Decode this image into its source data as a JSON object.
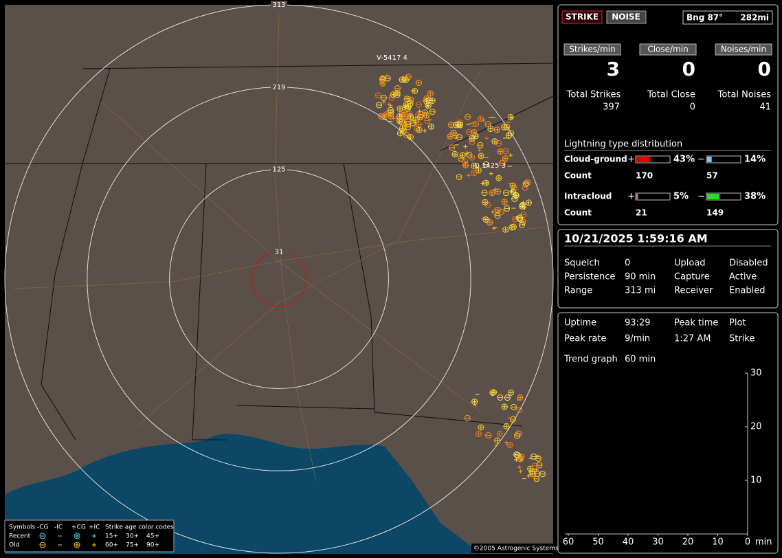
{
  "map": {
    "range_rings": [
      313,
      219,
      125,
      31
    ],
    "strike_tags": [
      "V-5417  4",
      "Q 1425  3"
    ],
    "legend": {
      "row_titles": [
        "Symbols",
        "Recent",
        "Old"
      ],
      "symbol_heads": [
        "-CG",
        "-IC",
        "+CG",
        "+IC"
      ],
      "age_title": "Strike age color codes",
      "recent_ages": [
        "15+",
        "30+",
        "45+"
      ],
      "old_ages": [
        "60+",
        "75+",
        "90+"
      ]
    },
    "copyright": "©2005 Astrogenic Systems"
  },
  "header": {
    "strike_button": "STRIKE",
    "noise_button": "NOISE",
    "bearing": "Bng 87°",
    "distance": "282mi"
  },
  "rates": [
    {
      "button": "Strikes/min",
      "value": 3,
      "total_label": "Total Strikes",
      "total": 397
    },
    {
      "button": "Close/min",
      "value": 0,
      "total_label": "Total Close",
      "total": 0
    },
    {
      "button": "Noises/min",
      "value": 0,
      "total_label": "Total Noises",
      "total": 41
    }
  ],
  "distribution": {
    "title": "Lightning type distribution",
    "count_label": "Count",
    "pos_sign": "+",
    "neg_sign": "−",
    "rows": [
      {
        "name": "Cloud-ground",
        "pos": {
          "value": 43,
          "label": "43%"
        },
        "neg": {
          "value": 14,
          "label": "14%"
        },
        "pos_count": 170,
        "neg_count": 57
      },
      {
        "name": "Intracloud",
        "pos": {
          "value": 5,
          "label": "5%"
        },
        "neg": {
          "value": 38,
          "label": "38%"
        },
        "pos_count": 21,
        "neg_count": 149
      }
    ]
  },
  "status": {
    "datetime": "10/21/2025 1:59:16 AM",
    "rows": [
      [
        "Squelch",
        "0",
        "Upload",
        "Disabled"
      ],
      [
        "Persistence",
        "90 min",
        "Capture",
        "Active"
      ],
      [
        "Range",
        "313 mi",
        "Receiver",
        "Enabled"
      ]
    ]
  },
  "stats": {
    "rows": [
      [
        "Uptime",
        "93:29",
        "Peak time",
        "Plot"
      ],
      [
        "Peak rate",
        "9/min",
        "1:27 AM",
        "Strike"
      ]
    ],
    "trend_label": "Trend graph",
    "trend_span": "60 min",
    "yticks": [
      30,
      20,
      10
    ],
    "xticks": [
      60,
      50,
      40,
      30,
      20,
      10,
      0
    ],
    "x_unit": "min"
  }
}
